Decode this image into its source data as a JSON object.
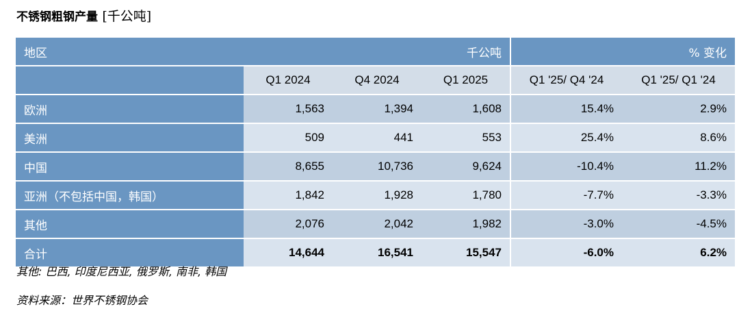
{
  "title": {
    "main": "不锈钢粗钢产量",
    "unit": "[千公吨]"
  },
  "table": {
    "header": {
      "region": "地区",
      "unit": "千公吨",
      "pct": "% 变化"
    },
    "columns": [
      "Q1 2024",
      "Q4 2024",
      "Q1 2025",
      "Q1 '25/ Q4 '24",
      "Q1 '25/ Q1 '24"
    ],
    "rows": [
      {
        "name": "欧洲",
        "values": [
          "1,563",
          "1,394",
          "1,608",
          "15.4%",
          "2.9%"
        ]
      },
      {
        "name": "美洲",
        "values": [
          "509",
          "441",
          "553",
          "25.4%",
          "8.6%"
        ]
      },
      {
        "name": "中国",
        "values": [
          "8,655",
          "10,736",
          "9,624",
          "-10.4%",
          "11.2%"
        ]
      },
      {
        "name": "亚洲（不包括中国，韩国）",
        "values": [
          "1,842",
          "1,928",
          "1,780",
          "-7.7%",
          "-3.3%"
        ]
      },
      {
        "name": "其他",
        "values": [
          "2,076",
          "2,042",
          "1,982",
          "-3.0%",
          "-4.5%"
        ]
      }
    ],
    "total": {
      "name": "合计",
      "values": [
        "14,644",
        "16,541",
        "15,547",
        "-6.0%",
        "6.2%"
      ]
    }
  },
  "notes": {
    "others": "其他: 巴西, 印度尼西亚, 俄罗斯, 南非, 韩国",
    "source": "资料来源：世界不锈钢协会"
  }
}
